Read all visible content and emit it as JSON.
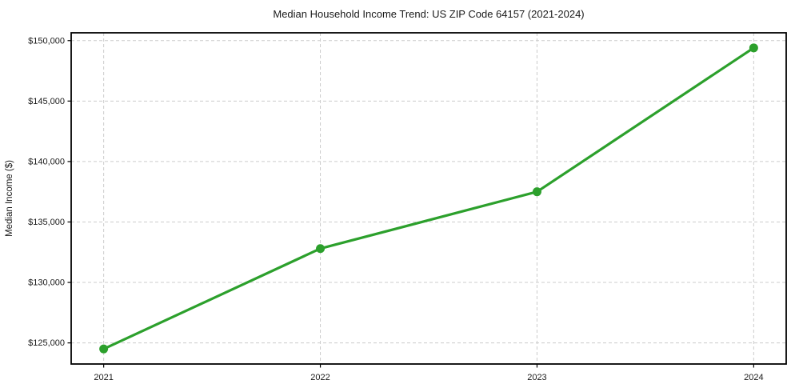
{
  "chart_data": {
    "type": "line",
    "title": "Median Household Income Trend: US ZIP Code 64157 (2021-2024)",
    "xlabel": "",
    "ylabel": "Median Income ($)",
    "categories": [
      "2021",
      "2022",
      "2023",
      "2024"
    ],
    "series": [
      {
        "name": "Median Household Income",
        "values": [
          124500,
          132800,
          137500,
          149400
        ]
      }
    ],
    "ytick_values": [
      125000,
      130000,
      135000,
      140000,
      145000,
      150000
    ],
    "ytick_labels": [
      "$125,000",
      "$130,000",
      "$135,000",
      "$140,000",
      "$145,000",
      "$150,000"
    ],
    "ylim": [
      123255,
      150645
    ],
    "xlim": [
      -0.15,
      3.15
    ],
    "grid": true,
    "grid_style": "dashed",
    "legend": "none",
    "colors": {
      "line": "#2ca02c",
      "marker": "#2ca02c",
      "grid": "#cccccc",
      "axis": "#000000",
      "text": "#1a1a1a",
      "background": "#ffffff"
    }
  }
}
